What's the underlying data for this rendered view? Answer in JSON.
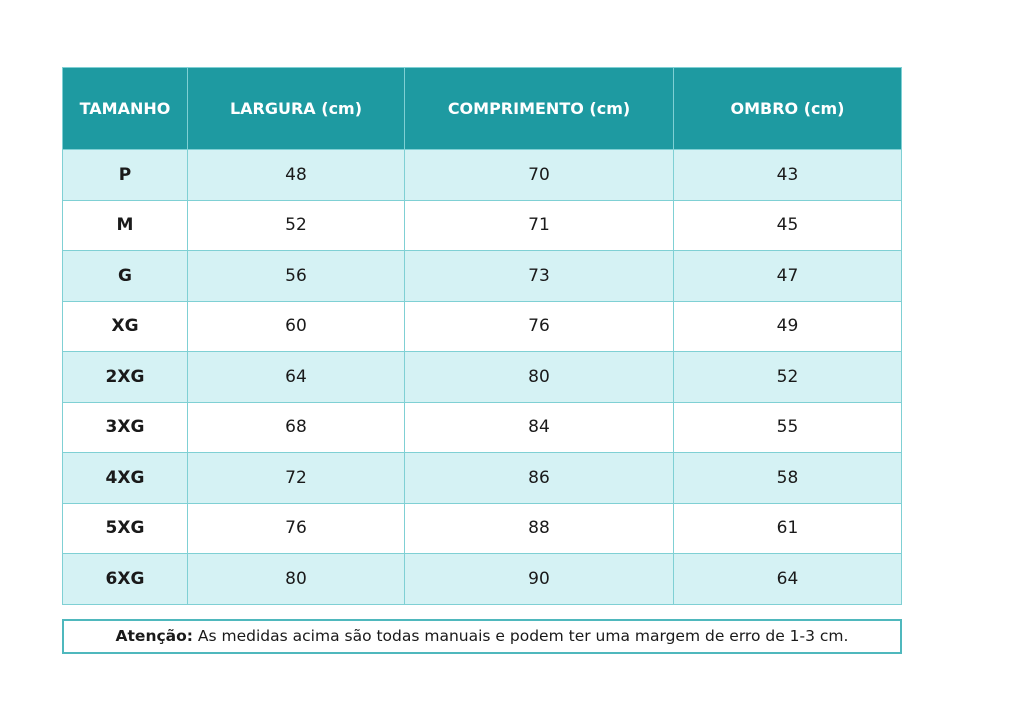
{
  "table": {
    "headers": [
      "TAMANHO",
      "LARGURA (cm)",
      "COMPRIMENTO (cm)",
      "OMBRO (cm)"
    ],
    "rows": [
      [
        "P",
        48,
        70,
        43
      ],
      [
        "M",
        52,
        71,
        45
      ],
      [
        "G",
        56,
        73,
        47
      ],
      [
        "XG",
        60,
        76,
        49
      ],
      [
        "2XG",
        64,
        80,
        52
      ],
      [
        "3XG",
        68,
        84,
        55
      ],
      [
        "4XG",
        72,
        86,
        58
      ],
      [
        "5XG",
        76,
        88,
        61
      ],
      [
        "6XG",
        80,
        90,
        64
      ]
    ]
  },
  "note": {
    "label": "Atenção:",
    "text": "As medidas acima são todas manuais e podem ter uma margem de erro de 1-3 cm."
  }
}
